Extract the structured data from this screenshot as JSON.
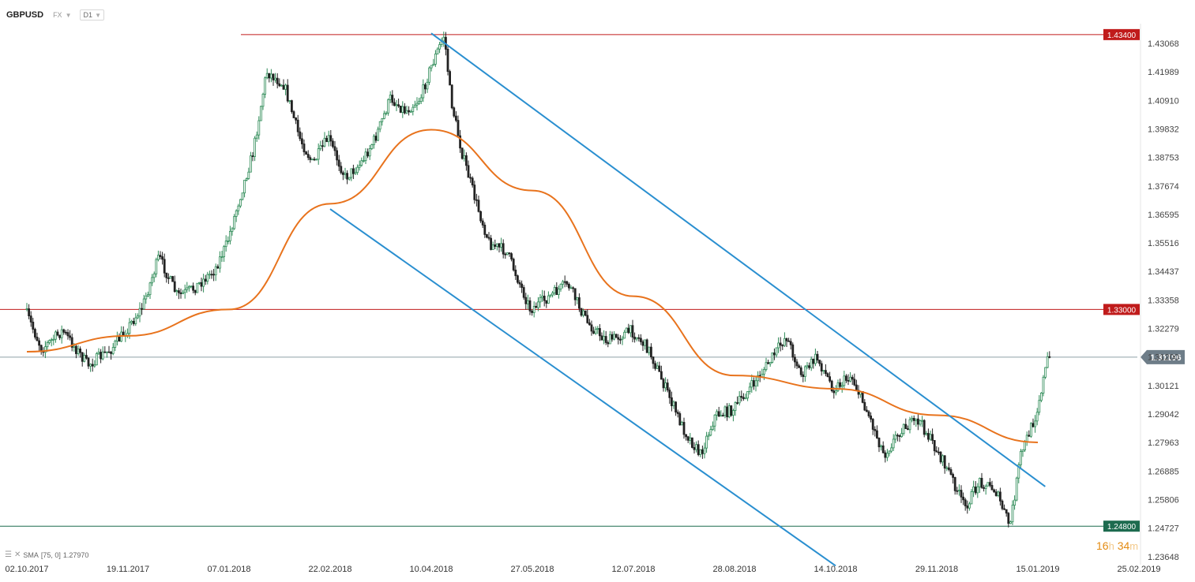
{
  "header": {
    "symbol": "GBPUSD",
    "market": "FX",
    "timeframe": "D1"
  },
  "indicator": {
    "name": "SMA",
    "params": "[75, 0]",
    "value": "1.27970"
  },
  "countdown": {
    "hours": "16",
    "h": "h",
    "minutes": "34",
    "m": "m"
  },
  "colors": {
    "bull": "#2e8b57",
    "bear": "#222222",
    "sma": "#e8731d",
    "channel": "#2a8fd0",
    "resistance": "#c01b1b",
    "support": "#1b6f8a",
    "price_badge": "#6e7d88",
    "support_badge": "#1d6b4f"
  },
  "chart_data": {
    "type": "candlestick",
    "symbol": "GBPUSD",
    "timeframe": "D1",
    "x_tick_labels": [
      "02.10.2017",
      "19.11.2017",
      "07.01.2018",
      "22.02.2018",
      "10.04.2018",
      "27.05.2018",
      "12.07.2018",
      "28.08.2018",
      "14.10.2018",
      "29.11.2018",
      "15.01.2019",
      "25.02.2019"
    ],
    "y_tick_labels": [
      "1.43068",
      "1.41989",
      "1.40910",
      "1.39832",
      "1.38753",
      "1.37674",
      "1.36595",
      "1.35516",
      "1.34437",
      "1.33358",
      "1.32279",
      "1.31200",
      "1.30121",
      "1.29042",
      "1.27963",
      "1.26885",
      "1.25806",
      "1.24727",
      "1.23648"
    ],
    "ylim": [
      1.2365,
      1.436
    ],
    "horizontal_levels": [
      {
        "value": 1.434,
        "label": "1.43400",
        "color": "#c01b1b"
      },
      {
        "value": 1.33,
        "label": "1.33000",
        "color": "#c01b1b"
      },
      {
        "value": 1.248,
        "label": "1.24800",
        "color": "#1d6b4f"
      }
    ],
    "current_price": {
      "value": 1.31196,
      "label": "1.31196"
    },
    "price_path": [
      [
        "02.10.2017",
        1.33
      ],
      [
        "10.10.2017",
        1.315
      ],
      [
        "20.10.2017",
        1.322
      ],
      [
        "01.11.2017",
        1.309
      ],
      [
        "12.11.2017",
        1.315
      ],
      [
        "19.11.2017",
        1.322
      ],
      [
        "27.11.2017",
        1.331
      ],
      [
        "05.12.2017",
        1.35
      ],
      [
        "14.12.2017",
        1.335
      ],
      [
        "22.12.2017",
        1.338
      ],
      [
        "01.01.2018",
        1.345
      ],
      [
        "07.01.2018",
        1.355
      ],
      [
        "12.01.2018",
        1.37
      ],
      [
        "19.01.2018",
        1.39
      ],
      [
        "25.01.2018",
        1.42
      ],
      [
        "02.02.2018",
        1.415
      ],
      [
        "09.02.2018",
        1.395
      ],
      [
        "15.02.2018",
        1.385
      ],
      [
        "22.02.2018",
        1.395
      ],
      [
        "02.03.2018",
        1.38
      ],
      [
        "09.03.2018",
        1.385
      ],
      [
        "16.03.2018",
        1.395
      ],
      [
        "23.03.2018",
        1.41
      ],
      [
        "30.03.2018",
        1.405
      ],
      [
        "06.04.2018",
        1.41
      ],
      [
        "10.04.2018",
        1.42
      ],
      [
        "17.04.2018",
        1.434
      ],
      [
        "20.04.2018",
        1.41
      ],
      [
        "25.04.2018",
        1.39
      ],
      [
        "02.05.2018",
        1.37
      ],
      [
        "08.05.2018",
        1.355
      ],
      [
        "16.05.2018",
        1.352
      ],
      [
        "27.05.2018",
        1.33
      ],
      [
        "05.06.2018",
        1.335
      ],
      [
        "13.06.2018",
        1.34
      ],
      [
        "22.06.2018",
        1.325
      ],
      [
        "01.07.2018",
        1.318
      ],
      [
        "12.07.2018",
        1.322
      ],
      [
        "20.07.2018",
        1.315
      ],
      [
        "28.07.2018",
        1.3
      ],
      [
        "05.08.2018",
        1.285
      ],
      [
        "13.08.2018",
        1.275
      ],
      [
        "20.08.2018",
        1.29
      ],
      [
        "28.08.2018",
        1.292
      ],
      [
        "05.09.2018",
        1.3
      ],
      [
        "14.09.2018",
        1.31
      ],
      [
        "22.09.2018",
        1.32
      ],
      [
        "29.09.2018",
        1.305
      ],
      [
        "06.10.2018",
        1.312
      ],
      [
        "14.10.2018",
        1.3
      ],
      [
        "22.10.2018",
        1.305
      ],
      [
        "30.10.2018",
        1.29
      ],
      [
        "06.11.2018",
        1.275
      ],
      [
        "14.11.2018",
        1.285
      ],
      [
        "22.11.2018",
        1.288
      ],
      [
        "29.11.2018",
        1.278
      ],
      [
        "06.12.2018",
        1.268
      ],
      [
        "13.12.2018",
        1.255
      ],
      [
        "20.12.2018",
        1.265
      ],
      [
        "27.12.2018",
        1.262
      ],
      [
        "03.01.2019",
        1.248
      ],
      [
        "08.01.2019",
        1.275
      ],
      [
        "15.01.2019",
        1.29
      ],
      [
        "20.01.2019",
        1.31196
      ]
    ],
    "sma_75_path": [
      [
        "02.10.2017",
        1.314
      ],
      [
        "19.11.2017",
        1.32
      ],
      [
        "07.01.2018",
        1.33
      ],
      [
        "22.02.2018",
        1.37
      ],
      [
        "10.04.2018",
        1.398
      ],
      [
        "27.05.2018",
        1.375
      ],
      [
        "12.07.2018",
        1.335
      ],
      [
        "28.08.2018",
        1.305
      ],
      [
        "14.10.2018",
        1.3
      ],
      [
        "29.11.2018",
        1.29
      ],
      [
        "15.01.2019",
        1.2797
      ]
    ],
    "channel_lines": [
      {
        "from": [
          "10.04.2018",
          1.4345
        ],
        "to": [
          "18.01.2019",
          1.263
        ]
      },
      {
        "from": [
          "22.02.2018",
          1.368
        ],
        "to": [
          "14.10.2018",
          1.233
        ]
      }
    ]
  }
}
